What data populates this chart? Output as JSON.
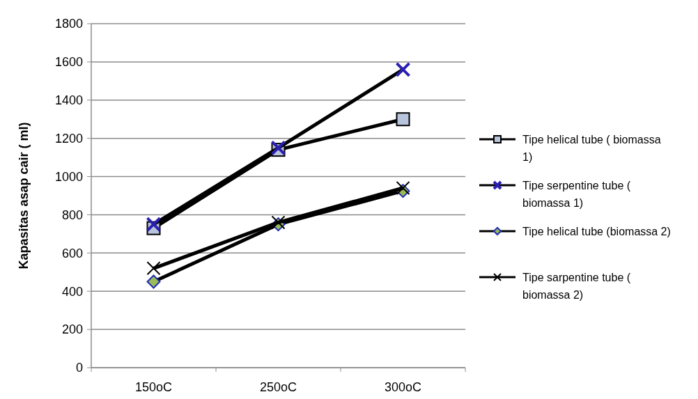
{
  "chart_data": {
    "type": "line",
    "ylabel": "Kapasitas asap cair ( ml)",
    "categories": [
      "150oC",
      "250oC",
      "300oC"
    ],
    "series": [
      {
        "name": "Tipe helical tube ( biomassa 1)",
        "color": "#b8c4dc",
        "marker": "square",
        "values": [
          730,
          1140,
          1300
        ]
      },
      {
        "name": "Tipe serpentine tube ( biomassa 1)",
        "color": "#2a1fb0",
        "marker": "cross",
        "values": [
          750,
          1150,
          1560
        ]
      },
      {
        "name": "Tipe helical tube (biomassa 2)",
        "color": "#9bbb59",
        "marker": "diamond",
        "values": [
          450,
          750,
          925
        ]
      },
      {
        "name": "Tipe sarpentine tube ( biomassa 2)",
        "color": "#000000",
        "marker": "cross",
        "values": [
          520,
          760,
          940
        ]
      }
    ],
    "ylim": [
      0,
      1800
    ],
    "yticks": [
      0,
      200,
      400,
      600,
      800,
      1000,
      1200,
      1400,
      1600,
      1800
    ],
    "grid": "y",
    "legend": "right"
  }
}
